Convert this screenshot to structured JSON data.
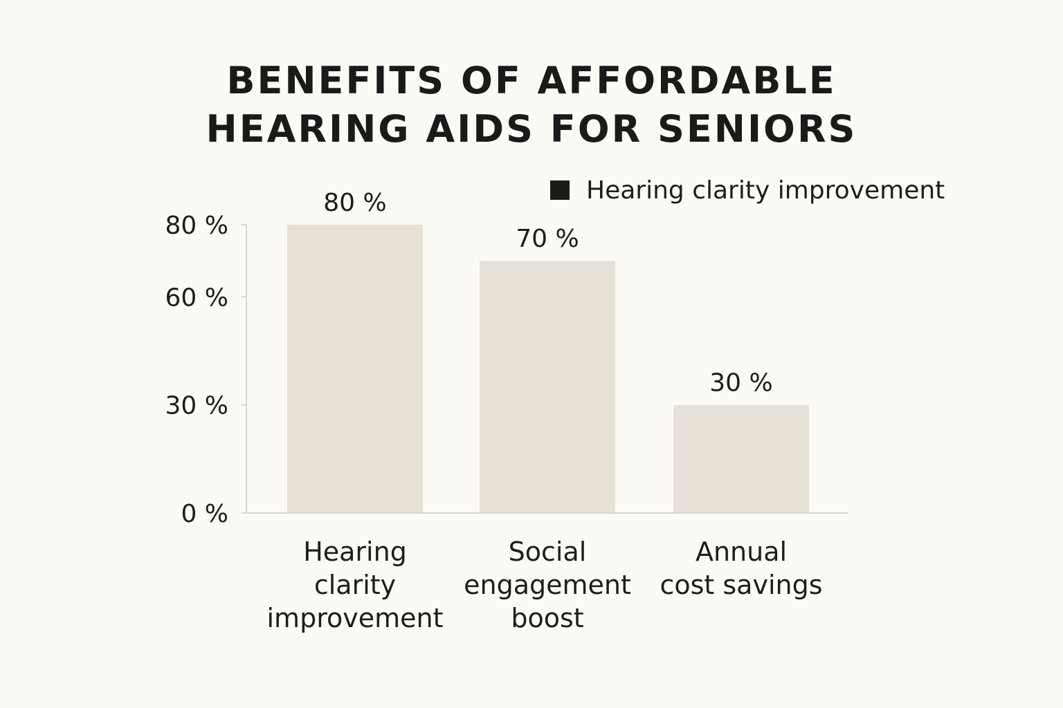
{
  "chart_data": {
    "type": "bar",
    "title": "BENEFITS OF AFFORDABLE\nHEARING AIDS FOR SENIORS",
    "xlabel": "",
    "ylabel": "",
    "categories": [
      [
        "Hearing",
        "clarity",
        "improvement"
      ],
      [
        "Social",
        "engagement",
        "boost"
      ],
      [
        "Annual",
        "cost savings"
      ]
    ],
    "values": [
      80,
      70,
      30
    ],
    "data_labels": [
      "80 %",
      "70 %",
      "30 %"
    ],
    "y_ticks": [
      {
        "value": 0,
        "label": "0 %"
      },
      {
        "value": 30,
        "label": "30 %"
      },
      {
        "value": 60,
        "label": "60 %"
      },
      {
        "value": 80,
        "label": "80 %"
      }
    ],
    "legend": {
      "position": "top-right",
      "entries": [
        "Hearing clarity improvement"
      ]
    },
    "grid": false,
    "colors": {
      "bar": "#e6e0d6",
      "axis": "#d9d6d0",
      "text": "#1d1d1d",
      "legend_swatch": "#1b1b1b",
      "background": "#fcfaf5"
    }
  }
}
